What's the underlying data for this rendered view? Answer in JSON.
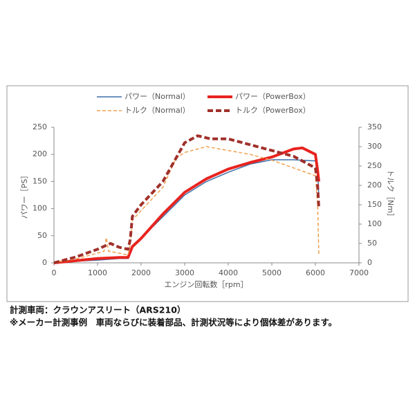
{
  "chart_data": {
    "type": "line",
    "x_label": "エンジン回転数［rpm］",
    "y_label": "パワー［PS］",
    "y2_label": "トルク［Nm］",
    "xlim": [
      0,
      7000
    ],
    "xticks": [
      0,
      1000,
      2000,
      3000,
      4000,
      5000,
      6000,
      7000
    ],
    "ylim": [
      0,
      250
    ],
    "yticks": [
      0,
      50,
      100,
      150,
      200,
      250
    ],
    "y2lim": [
      0,
      350
    ],
    "y2ticks": [
      0,
      50,
      100,
      150,
      200,
      250,
      300,
      350
    ],
    "series": [
      {
        "name": "パワー（Normal）",
        "color": "#3d6fa8",
        "style": "solid",
        "width": 1.5,
        "x": [
          0,
          500,
          1000,
          1500,
          1700,
          1800,
          2000,
          2500,
          3000,
          3500,
          4000,
          4500,
          5000,
          5500,
          6000,
          6050,
          6080
        ],
        "values": [
          0,
          3,
          5,
          8,
          8,
          30,
          45,
          85,
          125,
          150,
          167,
          182,
          190,
          190,
          188,
          170,
          120
        ]
      },
      {
        "name": "パワー（PowerBox）",
        "color": "#e8231f",
        "style": "solid",
        "width": 4,
        "x": [
          0,
          500,
          1000,
          1500,
          1700,
          1750,
          1800,
          2000,
          2500,
          3000,
          3500,
          4000,
          4500,
          5000,
          5500,
          5700,
          6000,
          6050,
          6080
        ],
        "values": [
          0,
          4,
          8,
          10,
          10,
          20,
          30,
          45,
          90,
          130,
          155,
          173,
          185,
          195,
          210,
          212,
          200,
          170,
          150
        ]
      },
      {
        "name": "トルク（Normal）",
        "color": "#f0a050",
        "style": "dashed",
        "width": 1.5,
        "axis": "y2",
        "x": [
          0,
          500,
          1000,
          1150,
          1200,
          1250,
          1500,
          1700,
          1750,
          1800,
          2000,
          2500,
          2800,
          3000,
          3500,
          4000,
          4500,
          5000,
          5500,
          6000,
          6050,
          6080
        ],
        "values": [
          0,
          10,
          25,
          30,
          65,
          30,
          25,
          20,
          50,
          110,
          135,
          195,
          270,
          285,
          300,
          290,
          280,
          265,
          245,
          225,
          150,
          20
        ]
      },
      {
        "name": "トルク（PowerBox）",
        "color": "#a0302a",
        "style": "dashed",
        "width": 4,
        "axis": "y2",
        "x": [
          0,
          500,
          1000,
          1300,
          1500,
          1700,
          1750,
          1800,
          2000,
          2500,
          2800,
          3000,
          3300,
          3600,
          4000,
          4500,
          5000,
          5500,
          6000,
          6050,
          6080
        ],
        "values": [
          0,
          15,
          35,
          50,
          40,
          35,
          60,
          120,
          150,
          210,
          270,
          310,
          328,
          320,
          320,
          305,
          290,
          275,
          245,
          200,
          140
        ]
      }
    ],
    "annotations": [
      "計測車両：クラウンアスリート（ARS210）",
      "※メーカー計測事例　車両ならびに装着部品、計測状況等により個体差があります。"
    ]
  }
}
